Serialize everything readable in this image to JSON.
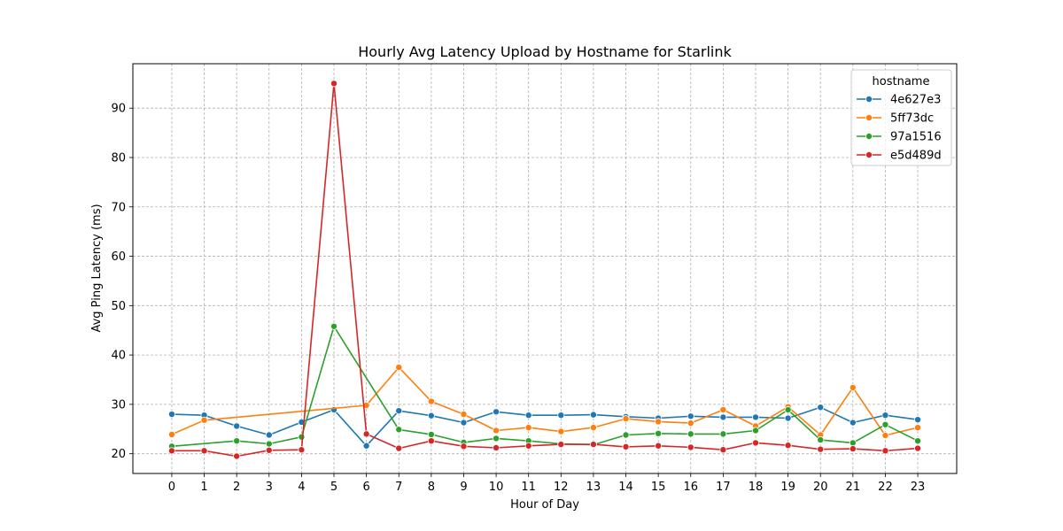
{
  "chart_data": {
    "type": "line",
    "title": "Hourly Avg Latency Upload by Hostname for Starlink",
    "xlabel": "Hour of Day",
    "ylabel": "Avg Ping Latency (ms)",
    "x": [
      0,
      1,
      2,
      3,
      4,
      5,
      6,
      7,
      8,
      9,
      10,
      11,
      12,
      13,
      14,
      15,
      16,
      17,
      18,
      19,
      20,
      21,
      22,
      23
    ],
    "xlim": [
      -1.2,
      24.2
    ],
    "ylim": [
      16,
      99
    ],
    "yticks": [
      20,
      30,
      40,
      50,
      60,
      70,
      80,
      90
    ],
    "grid": true,
    "legend_title": "hostname",
    "legend_position": "top-right",
    "series": [
      {
        "name": "4e627e3",
        "color": "#1f77b4",
        "x": [
          0,
          1,
          2,
          3,
          4,
          5,
          6,
          7,
          8,
          9,
          10,
          11,
          12,
          13,
          14,
          15,
          16,
          17,
          18,
          19,
          20,
          21,
          22,
          23
        ],
        "values": [
          28.0,
          27.8,
          25.6,
          23.8,
          26.4,
          28.9,
          21.6,
          28.7,
          27.7,
          26.3,
          28.5,
          27.8,
          27.8,
          27.9,
          27.5,
          27.2,
          27.6,
          27.4,
          27.4,
          27.2,
          29.4,
          26.3,
          27.8,
          26.9
        ]
      },
      {
        "name": "5ff73dc",
        "color": "#ff7f0e",
        "x": [
          0,
          1,
          6,
          7,
          8,
          9,
          10,
          11,
          12,
          13,
          14,
          15,
          16,
          17,
          18,
          19,
          20,
          21,
          22,
          23
        ],
        "values": [
          23.9,
          26.8,
          29.8,
          37.5,
          30.6,
          28.0,
          24.7,
          25.3,
          24.5,
          25.3,
          27.1,
          26.5,
          26.2,
          28.9,
          25.6,
          29.5,
          23.8,
          33.4,
          23.7,
          25.3
        ]
      },
      {
        "name": "97a1516",
        "color": "#2ca02c",
        "x": [
          0,
          2,
          3,
          4,
          5,
          7,
          8,
          9,
          10,
          11,
          12,
          13,
          14,
          15,
          16,
          17,
          18,
          19,
          20,
          21,
          22,
          23
        ],
        "values": [
          21.5,
          22.6,
          22.0,
          23.4,
          45.8,
          24.9,
          23.9,
          22.3,
          23.1,
          22.6,
          22.0,
          21.8,
          23.8,
          24.1,
          24.0,
          24.0,
          24.7,
          28.9,
          22.8,
          22.2,
          25.9,
          22.6
        ]
      },
      {
        "name": "e5d489d",
        "color": "#d62728",
        "x": [
          0,
          1,
          2,
          3,
          4,
          5,
          6,
          7,
          8,
          9,
          10,
          11,
          12,
          13,
          14,
          15,
          16,
          17,
          18,
          19,
          20,
          21,
          22,
          23
        ],
        "values": [
          20.6,
          20.6,
          19.5,
          20.7,
          20.8,
          95.0,
          24.0,
          21.1,
          22.6,
          21.5,
          21.2,
          21.6,
          21.9,
          21.9,
          21.4,
          21.6,
          21.3,
          20.8,
          22.2,
          21.7,
          20.9,
          21.0,
          20.6,
          21.1
        ]
      }
    ]
  }
}
